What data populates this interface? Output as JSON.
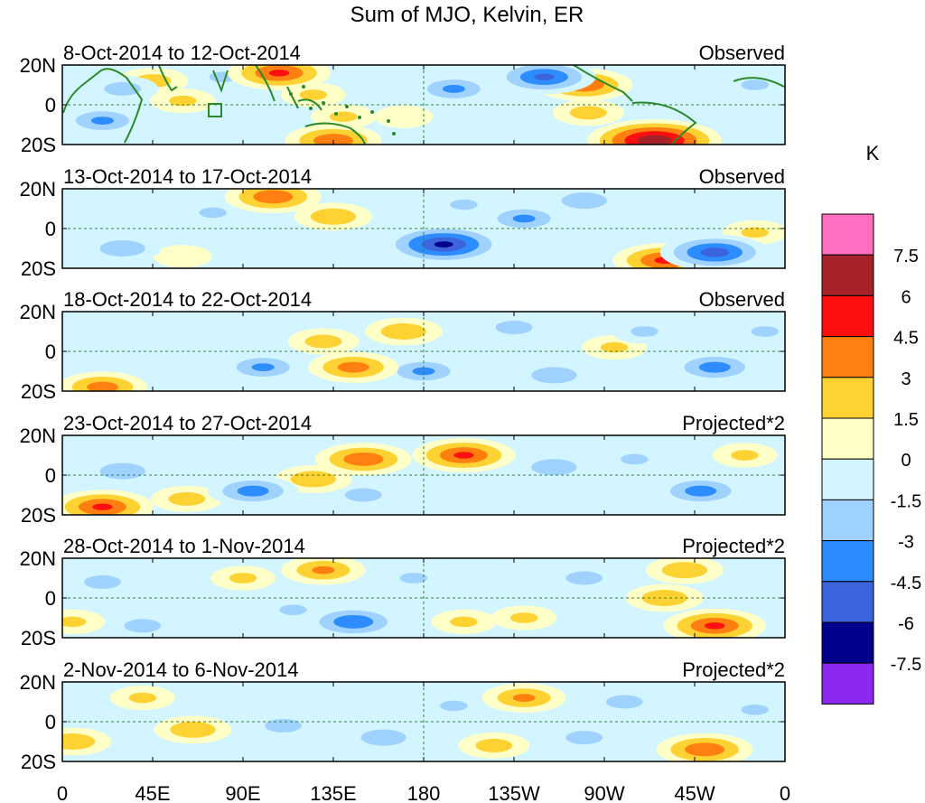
{
  "chart_data": {
    "type": "heatmap",
    "title": "Sum of MJO, Kelvin, ER",
    "units": "K",
    "x_tick_labels": [
      "0",
      "45E",
      "90E",
      "135E",
      "180",
      "135W",
      "90W",
      "45W",
      "0"
    ],
    "y_tick_labels": [
      "20N",
      "0",
      "20S"
    ],
    "colorbar": {
      "labels": [
        "7.5",
        "6",
        "4.5",
        "3",
        "1.5",
        "0",
        "-1.5",
        "-3",
        "-4.5",
        "-6",
        "-7.5"
      ],
      "colors": [
        "#ff6ec0",
        "#a52228",
        "#ff1010",
        "#ff7f11",
        "#ffd233",
        "#ffffc8",
        "#d2f5ff",
        "#a0d2ff",
        "#2d8cff",
        "#3c64dc",
        "#00008c",
        "#8c28f0"
      ]
    },
    "panels": [
      {
        "date_range": "8-Oct-2014 to 12-Oct-2014",
        "status": "Observed",
        "anomalies": [
          {
            "lon": 45,
            "lat": 12,
            "value": 2.5
          },
          {
            "lon": 30,
            "lat": 8,
            "value": -2.5
          },
          {
            "lon": 20,
            "lat": -8,
            "value": -3.5
          },
          {
            "lon": 60,
            "lat": 2,
            "value": 2
          },
          {
            "lon": 80,
            "lat": 14,
            "value": -2
          },
          {
            "lon": 108,
            "lat": 16,
            "value": 5
          },
          {
            "lon": 125,
            "lat": 5,
            "value": 2
          },
          {
            "lon": 140,
            "lat": -6,
            "value": 2
          },
          {
            "lon": 135,
            "lat": -18,
            "value": 4.5
          },
          {
            "lon": 170,
            "lat": -6,
            "value": 1.5
          },
          {
            "lon": 195,
            "lat": 8,
            "value": -3.5
          },
          {
            "lon": 240,
            "lat": 14,
            "value": -5
          },
          {
            "lon": 260,
            "lat": 10,
            "value": 4.5
          },
          {
            "lon": 262,
            "lat": -4,
            "value": 2.5
          },
          {
            "lon": 295,
            "lat": -18,
            "value": 7.5
          },
          {
            "lon": 345,
            "lat": 10,
            "value": -2
          }
        ]
      },
      {
        "date_range": "13-Oct-2014 to 17-Oct-2014",
        "status": "Observed",
        "anomalies": [
          {
            "lon": 105,
            "lat": 16,
            "value": 4.5
          },
          {
            "lon": 135,
            "lat": 6,
            "value": 3
          },
          {
            "lon": 190,
            "lat": -8,
            "value": -6.5
          },
          {
            "lon": 230,
            "lat": 5,
            "value": -3.5
          },
          {
            "lon": 200,
            "lat": 12,
            "value": -2
          },
          {
            "lon": 300,
            "lat": -16,
            "value": 5
          },
          {
            "lon": 325,
            "lat": -12,
            "value": -5.5
          },
          {
            "lon": 30,
            "lat": -10,
            "value": -3
          },
          {
            "lon": 60,
            "lat": -14,
            "value": 1.5
          },
          {
            "lon": 345,
            "lat": -2,
            "value": 2
          },
          {
            "lon": 260,
            "lat": 14,
            "value": -3
          },
          {
            "lon": 75,
            "lat": 8,
            "value": -2
          }
        ]
      },
      {
        "date_range": "18-Oct-2014 to 22-Oct-2014",
        "status": "Observed",
        "anomalies": [
          {
            "lon": 130,
            "lat": 5,
            "value": 2.5
          },
          {
            "lon": 170,
            "lat": 10,
            "value": 3
          },
          {
            "lon": 145,
            "lat": -8,
            "value": 4
          },
          {
            "lon": 20,
            "lat": -18,
            "value": 4
          },
          {
            "lon": 100,
            "lat": -8,
            "value": -3.5
          },
          {
            "lon": 180,
            "lat": -10,
            "value": -3.5
          },
          {
            "lon": 225,
            "lat": 12,
            "value": -2.5
          },
          {
            "lon": 245,
            "lat": -12,
            "value": -3
          },
          {
            "lon": 275,
            "lat": 2,
            "value": 2
          },
          {
            "lon": 325,
            "lat": -8,
            "value": -4
          },
          {
            "lon": 350,
            "lat": 10,
            "value": -2
          },
          {
            "lon": 290,
            "lat": 10,
            "value": -2
          }
        ]
      },
      {
        "date_range": "23-Oct-2014 to 27-Oct-2014",
        "status": "Projected*2",
        "anomalies": [
          {
            "lon": 150,
            "lat": 8,
            "value": 4.5
          },
          {
            "lon": 125,
            "lat": -2,
            "value": 3
          },
          {
            "lon": 200,
            "lat": 10,
            "value": 5
          },
          {
            "lon": 20,
            "lat": -16,
            "value": 5
          },
          {
            "lon": 95,
            "lat": -8,
            "value": -4
          },
          {
            "lon": 150,
            "lat": -10,
            "value": -2.5
          },
          {
            "lon": 30,
            "lat": 2,
            "value": -3
          },
          {
            "lon": 62,
            "lat": -12,
            "value": 2.5
          },
          {
            "lon": 245,
            "lat": 4,
            "value": -3
          },
          {
            "lon": 318,
            "lat": -8,
            "value": -4
          },
          {
            "lon": 340,
            "lat": 10,
            "value": 2
          },
          {
            "lon": 285,
            "lat": 8,
            "value": -2
          }
        ]
      },
      {
        "date_range": "28-Oct-2014 to 1-Nov-2014",
        "status": "Projected*2",
        "anomalies": [
          {
            "lon": 130,
            "lat": 14,
            "value": 3.5
          },
          {
            "lon": 145,
            "lat": -12,
            "value": -4.5
          },
          {
            "lon": 115,
            "lat": -6,
            "value": -2
          },
          {
            "lon": 325,
            "lat": -14,
            "value": 5
          },
          {
            "lon": 300,
            "lat": 0,
            "value": 3
          },
          {
            "lon": 20,
            "lat": 8,
            "value": -2.5
          },
          {
            "lon": 40,
            "lat": -14,
            "value": -2.5
          },
          {
            "lon": 5,
            "lat": -12,
            "value": 2
          },
          {
            "lon": 90,
            "lat": 10,
            "value": 2
          },
          {
            "lon": 200,
            "lat": -12,
            "value": 2
          },
          {
            "lon": 260,
            "lat": 10,
            "value": -2.5
          },
          {
            "lon": 310,
            "lat": 14,
            "value": 3
          },
          {
            "lon": 230,
            "lat": -10,
            "value": 2
          },
          {
            "lon": 175,
            "lat": 10,
            "value": -2
          }
        ]
      },
      {
        "date_range": "2-Nov-2014 to 6-Nov-2014",
        "status": "Projected*2",
        "anomalies": [
          {
            "lon": 230,
            "lat": 12,
            "value": 3.5
          },
          {
            "lon": 195,
            "lat": 8,
            "value": -2
          },
          {
            "lon": 65,
            "lat": -4,
            "value": 3
          },
          {
            "lon": 5,
            "lat": -10,
            "value": 3
          },
          {
            "lon": 110,
            "lat": -2,
            "value": -2.5
          },
          {
            "lon": 160,
            "lat": -8,
            "value": -3
          },
          {
            "lon": 320,
            "lat": -14,
            "value": 4.5
          },
          {
            "lon": 280,
            "lat": 10,
            "value": -2.5
          },
          {
            "lon": 40,
            "lat": 12,
            "value": 2
          },
          {
            "lon": 260,
            "lat": -8,
            "value": -2.5
          },
          {
            "lon": 215,
            "lat": -12,
            "value": 2.5
          },
          {
            "lon": 345,
            "lat": 6,
            "value": -2
          }
        ]
      }
    ]
  }
}
